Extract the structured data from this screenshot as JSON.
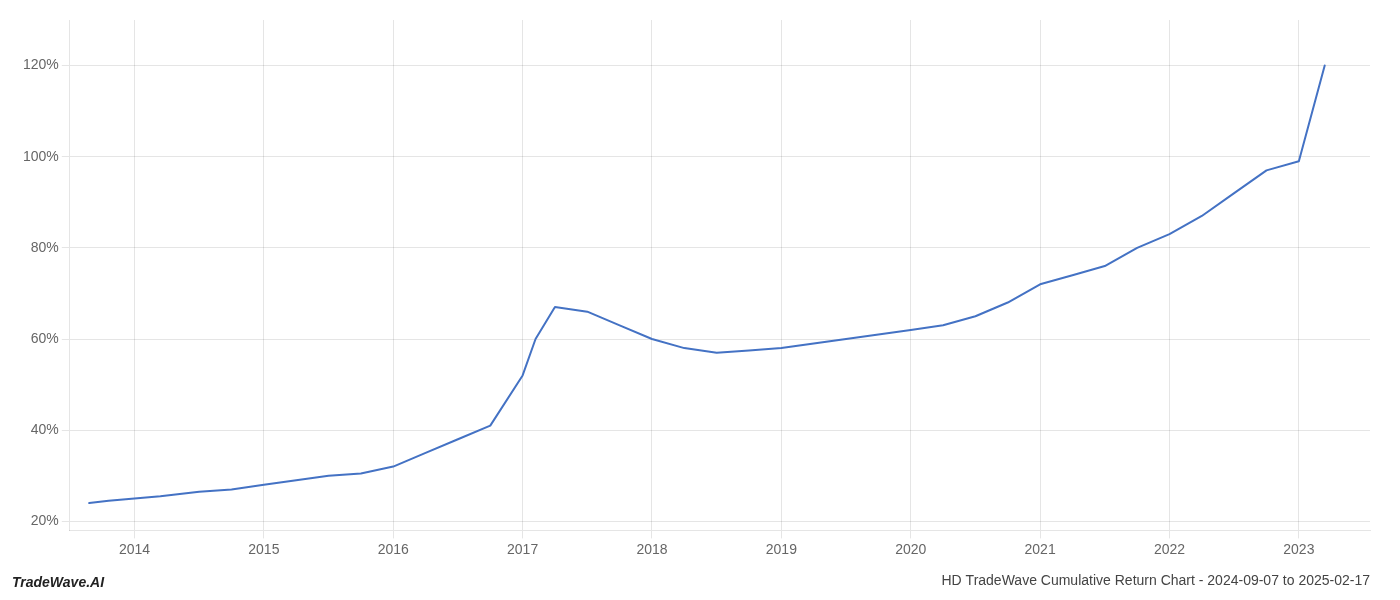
{
  "chart_data": {
    "type": "line",
    "title": "HD TradeWave Cumulative Return Chart - 2024-09-07 to 2025-02-17",
    "annotations": [
      "TradeWave.AI"
    ],
    "x": [
      2013.65,
      2013.8,
      2014.0,
      2014.2,
      2014.5,
      2014.75,
      2015.0,
      2015.25,
      2015.5,
      2015.75,
      2016.0,
      2016.25,
      2016.5,
      2016.75,
      2017.0,
      2017.1,
      2017.25,
      2017.5,
      2017.75,
      2018.0,
      2018.25,
      2018.5,
      2018.75,
      2019.0,
      2019.25,
      2019.5,
      2019.75,
      2020.0,
      2020.25,
      2020.5,
      2020.75,
      2021.0,
      2021.25,
      2021.5,
      2021.75,
      2022.0,
      2022.25,
      2022.5,
      2022.75,
      2023.0,
      2023.2
    ],
    "values": [
      24,
      24.5,
      25,
      25.5,
      26.5,
      27,
      28,
      29,
      30,
      30.5,
      32,
      35,
      38,
      41,
      52,
      60,
      67,
      66,
      63,
      60,
      58,
      57,
      57.5,
      58,
      59,
      60,
      61,
      62,
      63,
      65,
      68,
      72,
      74,
      76,
      80,
      83,
      87,
      92,
      97,
      99,
      120
    ],
    "color": "#4472c4",
    "xlim": [
      2013.5,
      2023.55
    ],
    "xticks": [
      2014,
      2015,
      2016,
      2017,
      2018,
      2019,
      2020,
      2021,
      2022,
      2023
    ],
    "ylim": [
      18,
      130
    ],
    "yticks": [
      {
        "value": 20,
        "label": "20%"
      },
      {
        "value": 40,
        "label": "40%"
      },
      {
        "value": 60,
        "label": "60%"
      },
      {
        "value": 80,
        "label": "80%"
      },
      {
        "value": 100,
        "label": "100%"
      },
      {
        "value": 120,
        "label": "120%"
      }
    ],
    "grid": true
  }
}
